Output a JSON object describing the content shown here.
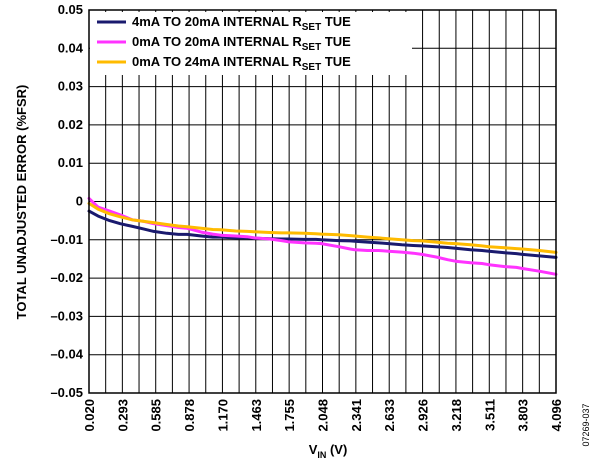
{
  "chart_data": {
    "type": "line",
    "xlabel": {
      "main": "V",
      "sub": "IN",
      "tail": " (V)"
    },
    "ylabel": "TOTAL UNADJUSTED ERROR (%FSR)",
    "xlim": [
      0.02,
      4.096
    ],
    "ylim": [
      -0.05,
      0.05
    ],
    "x_ticks": [
      "0.020",
      "0.293",
      "0.585",
      "0.878",
      "1.170",
      "1.463",
      "1.755",
      "2.048",
      "2.341",
      "2.633",
      "2.926",
      "3.218",
      "3.511",
      "3.803",
      "4.096"
    ],
    "y_ticks": [
      "0.05",
      "0.04",
      "0.03",
      "0.02",
      "0.01",
      "0",
      "–0.01",
      "–0.02",
      "–0.03",
      "–0.04",
      "–0.05"
    ],
    "y_tick_values": [
      0.05,
      0.04,
      0.03,
      0.02,
      0.01,
      0,
      -0.01,
      -0.02,
      -0.03,
      -0.04,
      -0.05
    ],
    "grid": true,
    "legend_position": "top-left",
    "figure_id": "07269-037",
    "series": [
      {
        "name": {
          "main": "4mA TO 20mA INTERNAL R",
          "sub": "SET",
          "tail": " TUE"
        },
        "color": "#1a1a6e",
        "x": [
          0.02,
          0.1,
          0.2,
          0.293,
          0.4,
          0.5,
          0.585,
          0.7,
          0.8,
          0.878,
          1.0,
          1.1,
          1.17,
          1.3,
          1.4,
          1.463,
          1.6,
          1.7,
          1.755,
          1.9,
          2.0,
          2.048,
          2.2,
          2.3,
          2.341,
          2.45,
          2.55,
          2.633,
          2.75,
          2.85,
          2.926,
          3.05,
          3.15,
          3.218,
          3.35,
          3.45,
          3.511,
          3.65,
          3.75,
          3.803,
          3.95,
          4.096
        ],
        "values": [
          -0.0025,
          -0.0038,
          -0.005,
          -0.0058,
          -0.0065,
          -0.0072,
          -0.0078,
          -0.0083,
          -0.0086,
          -0.0086,
          -0.009,
          -0.0093,
          -0.0093,
          -0.0095,
          -0.0095,
          -0.0096,
          -0.0097,
          -0.0098,
          -0.0098,
          -0.0099,
          -0.0099,
          -0.01,
          -0.0102,
          -0.0103,
          -0.0104,
          -0.0106,
          -0.0108,
          -0.011,
          -0.0113,
          -0.0115,
          -0.0116,
          -0.0118,
          -0.012,
          -0.0122,
          -0.0126,
          -0.0128,
          -0.013,
          -0.0134,
          -0.0136,
          -0.0138,
          -0.0142,
          -0.0146
        ]
      },
      {
        "name": {
          "main": "0mA TO 20mA INTERNAL R",
          "sub": "SET",
          "tail": " TUE"
        },
        "color": "#ff33ff",
        "x": [
          0.02,
          0.1,
          0.2,
          0.293,
          0.4,
          0.5,
          0.585,
          0.7,
          0.8,
          0.878,
          1.0,
          1.1,
          1.17,
          1.3,
          1.4,
          1.463,
          1.6,
          1.7,
          1.755,
          1.9,
          2.0,
          2.048,
          2.2,
          2.3,
          2.341,
          2.45,
          2.55,
          2.633,
          2.75,
          2.85,
          2.926,
          3.05,
          3.15,
          3.218,
          3.35,
          3.45,
          3.511,
          3.65,
          3.75,
          3.803,
          3.95,
          4.096
        ],
        "values": [
          0.0008,
          -0.0015,
          -0.0025,
          -0.0035,
          -0.0048,
          -0.0052,
          -0.0058,
          -0.0063,
          -0.0068,
          -0.007,
          -0.008,
          -0.0085,
          -0.0088,
          -0.009,
          -0.0092,
          -0.0095,
          -0.0098,
          -0.0102,
          -0.0105,
          -0.0108,
          -0.0109,
          -0.011,
          -0.0118,
          -0.0124,
          -0.0126,
          -0.0128,
          -0.0128,
          -0.013,
          -0.0132,
          -0.0135,
          -0.0138,
          -0.0145,
          -0.0152,
          -0.0156,
          -0.016,
          -0.0162,
          -0.0165,
          -0.017,
          -0.0172,
          -0.0175,
          -0.0182,
          -0.019
        ]
      },
      {
        "name": {
          "main": "0mA TO 24mA INTERNAL R",
          "sub": "SET",
          "tail": " TUE"
        },
        "color": "#ffbb00",
        "x": [
          0.02,
          0.1,
          0.2,
          0.293,
          0.4,
          0.5,
          0.585,
          0.7,
          0.8,
          0.878,
          1.0,
          1.1,
          1.17,
          1.3,
          1.4,
          1.463,
          1.6,
          1.7,
          1.755,
          1.9,
          2.0,
          2.048,
          2.2,
          2.3,
          2.341,
          2.45,
          2.55,
          2.633,
          2.75,
          2.85,
          2.926,
          3.05,
          3.15,
          3.218,
          3.35,
          3.45,
          3.511,
          3.65,
          3.75,
          3.803,
          3.95,
          4.096
        ],
        "values": [
          -0.0005,
          -0.002,
          -0.0032,
          -0.004,
          -0.0048,
          -0.0052,
          -0.0055,
          -0.006,
          -0.0064,
          -0.0066,
          -0.007,
          -0.0073,
          -0.0074,
          -0.0077,
          -0.0078,
          -0.0079,
          -0.0081,
          -0.0082,
          -0.0082,
          -0.0083,
          -0.0084,
          -0.0085,
          -0.0087,
          -0.0089,
          -0.009,
          -0.0093,
          -0.0095,
          -0.0097,
          -0.01,
          -0.0102,
          -0.0103,
          -0.0106,
          -0.0109,
          -0.011,
          -0.0113,
          -0.0116,
          -0.0118,
          -0.0121,
          -0.0123,
          -0.0124,
          -0.0128,
          -0.0133
        ]
      }
    ]
  }
}
